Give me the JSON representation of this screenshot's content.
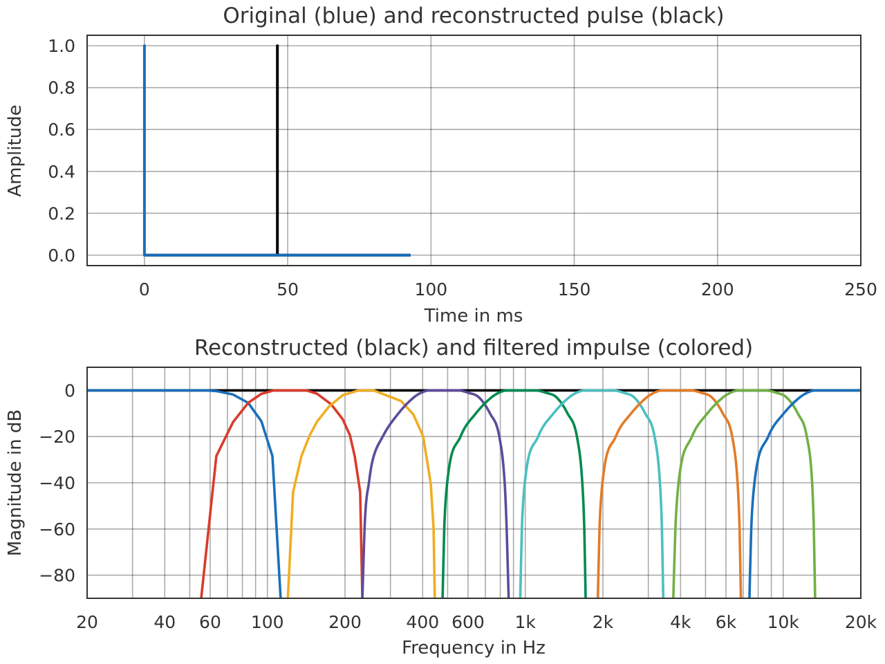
{
  "chart_data": [
    {
      "type": "line",
      "title": "Original (blue) and reconstructed pulse (black)",
      "xlabel": "Time in ms",
      "ylabel": "Amplitude",
      "xlim": [
        -20,
        250
      ],
      "ylim": [
        -0.05,
        1.05
      ],
      "xticks": [
        0,
        50,
        100,
        150,
        200,
        250
      ],
      "xtick_labels": [
        "0",
        "50",
        "100",
        "150",
        "200",
        "250"
      ],
      "yticks": [
        0,
        0.2,
        0.4,
        0.6,
        0.8,
        1.0
      ],
      "ytick_labels": [
        "0.0",
        "0.2",
        "0.4",
        "0.6",
        "0.8",
        "1.0"
      ],
      "grid": true,
      "series": [
        {
          "color": "#000000",
          "points": [
            [
              0,
              0
            ],
            [
              46.4,
              0
            ],
            [
              46.4,
              1
            ],
            [
              46.4,
              0
            ],
            [
              92.9,
              0
            ]
          ]
        },
        {
          "color": "#1a6fba",
          "points": [
            [
              0,
              0
            ],
            [
              0,
              1
            ],
            [
              0,
              0
            ],
            [
              92.9,
              0
            ]
          ]
        }
      ]
    },
    {
      "type": "line",
      "title": "Reconstructed (black) and filtered impulse (colored)",
      "xlabel": "Frequency in Hz",
      "ylabel": "Magnitude in dB",
      "xscale": "log",
      "xlim": [
        20,
        20000
      ],
      "ylim": [
        -90,
        10
      ],
      "xticks": [
        20,
        40,
        60,
        100,
        200,
        400,
        600,
        1000,
        2000,
        4000,
        6000,
        10000,
        20000
      ],
      "xtick_labels": [
        "20",
        "40",
        "60",
        "100",
        "200",
        "400",
        "600",
        "1k",
        "2k",
        "4k",
        "6k",
        "10k",
        "20k"
      ],
      "yticks": [
        0,
        -20,
        -40,
        -60,
        -80
      ],
      "ytick_labels": [
        "0",
        "−20",
        "−40",
        "−60",
        "−80"
      ],
      "grid": true,
      "series": [
        {
          "color": "#000000",
          "points": [
            [
              20,
              0
            ],
            [
              20000,
              0
            ]
          ]
        },
        {
          "color": "#1a6fba",
          "points": [
            [
              20,
              0
            ],
            [
              58,
              0
            ],
            [
              63.4,
              -0.3
            ],
            [
              73.6,
              -1.8
            ],
            [
              84.3,
              -5.4
            ],
            [
              94.8,
              -13.4
            ],
            [
              104.6,
              -28.4
            ],
            [
              112.6,
              -90
            ]
          ]
        },
        {
          "color": "#d93b2b",
          "points": [
            [
              55.4,
              -90
            ],
            [
              63.4,
              -28.4
            ],
            [
              73.6,
              -13.7
            ],
            [
              84.3,
              -5.4
            ],
            [
              94.8,
              -1.5
            ],
            [
              106,
              0
            ],
            [
              141.6,
              0
            ],
            [
              156,
              -1.5
            ],
            [
              176.7,
              -6
            ],
            [
              196,
              -12.5
            ],
            [
              209,
              -19.4
            ],
            [
              218,
              -28.4
            ],
            [
              229,
              -43.9
            ],
            [
              233.5,
              -90
            ]
          ]
        },
        {
          "color": "#efae22",
          "points": [
            [
              120,
              -90
            ],
            [
              125.8,
              -44
            ],
            [
              135.6,
              -28.4
            ],
            [
              146,
              -19.4
            ],
            [
              156,
              -13.4
            ],
            [
              173.6,
              -6.9
            ],
            [
              196,
              -2.1
            ],
            [
              226,
              0
            ],
            [
              258,
              0
            ],
            [
              330,
              -4.6
            ],
            [
              368,
              -10.4
            ],
            [
              402,
              -20
            ],
            [
              430,
              -40.3
            ],
            [
              441,
              -60
            ],
            [
              446,
              -90
            ]
          ]
        },
        {
          "color": "#5e4b9a",
          "points": [
            [
              233.5,
              -90
            ],
            [
              239,
              -56
            ],
            [
              248,
              -39.4
            ],
            [
              255,
              -31
            ],
            [
              280,
              -20
            ],
            [
              322,
              -10
            ],
            [
              370,
              -3
            ],
            [
              395,
              -1
            ],
            [
              424,
              0
            ],
            [
              550,
              0
            ],
            [
              600,
              -1
            ],
            [
              661,
              -3
            ],
            [
              730,
              -10
            ],
            [
              793,
              -20
            ],
            [
              832,
              -40
            ],
            [
              847,
              -60
            ],
            [
              862,
              -90
            ]
          ]
        },
        {
          "color": "#008a50",
          "points": [
            [
              478,
              -90
            ],
            [
              485,
              -60
            ],
            [
              498,
              -40
            ],
            [
              561,
              -20
            ],
            [
              643,
              -10
            ],
            [
              740,
              -3
            ],
            [
              790,
              -1
            ],
            [
              848,
              0
            ],
            [
              1100,
              0
            ],
            [
              1200,
              -1
            ],
            [
              1322,
              -3
            ],
            [
              1459,
              -10
            ],
            [
              1586,
              -20
            ],
            [
              1664,
              -40
            ],
            [
              1694,
              -60
            ],
            [
              1714,
              -90
            ]
          ]
        },
        {
          "color": "#4bbfbf",
          "points": [
            [
              956,
              -90
            ],
            [
              970,
              -60
            ],
            [
              996,
              -40
            ],
            [
              1122,
              -20
            ],
            [
              1286,
              -10
            ],
            [
              1480,
              -3
            ],
            [
              1580,
              -1
            ],
            [
              1696,
              0
            ],
            [
              2200,
              0
            ],
            [
              2400,
              -1
            ],
            [
              2644,
              -3
            ],
            [
              2918,
              -10
            ],
            [
              3172,
              -20
            ],
            [
              3328,
              -40
            ],
            [
              3388,
              -60
            ],
            [
              3428,
              -90
            ]
          ]
        },
        {
          "color": "#e37b26",
          "points": [
            [
              1912,
              -90
            ],
            [
              1940,
              -60
            ],
            [
              1992,
              -40
            ],
            [
              2244,
              -20
            ],
            [
              2572,
              -10
            ],
            [
              2960,
              -3
            ],
            [
              3160,
              -1
            ],
            [
              3392,
              0
            ],
            [
              4400,
              0
            ],
            [
              4800,
              -1
            ],
            [
              5288,
              -3
            ],
            [
              5836,
              -10
            ],
            [
              6344,
              -20
            ],
            [
              6656,
              -40
            ],
            [
              6776,
              -60
            ],
            [
              6856,
              -90
            ]
          ]
        },
        {
          "color": "#70b045",
          "points": [
            [
              3750,
              -90
            ],
            [
              3820,
              -60
            ],
            [
              3930,
              -40
            ],
            [
              4430,
              -20
            ],
            [
              5080,
              -10
            ],
            [
              5850,
              -3
            ],
            [
              6250,
              -1
            ],
            [
              6700,
              0
            ],
            [
              8600,
              0
            ],
            [
              9400,
              -1
            ],
            [
              10300,
              -3
            ],
            [
              11400,
              -10
            ],
            [
              12350,
              -20
            ],
            [
              12950,
              -40
            ],
            [
              13150,
              -60
            ],
            [
              13300,
              -90
            ]
          ]
        },
        {
          "color": "#1a6fba",
          "points": [
            [
              7400,
              -90
            ],
            [
              7520,
              -60
            ],
            [
              7740,
              -40
            ],
            [
              8750,
              -20
            ],
            [
              10050,
              -10
            ],
            [
              11600,
              -3
            ],
            [
              12400,
              -1
            ],
            [
              13300,
              0
            ],
            [
              20000,
              0
            ]
          ]
        }
      ]
    }
  ]
}
